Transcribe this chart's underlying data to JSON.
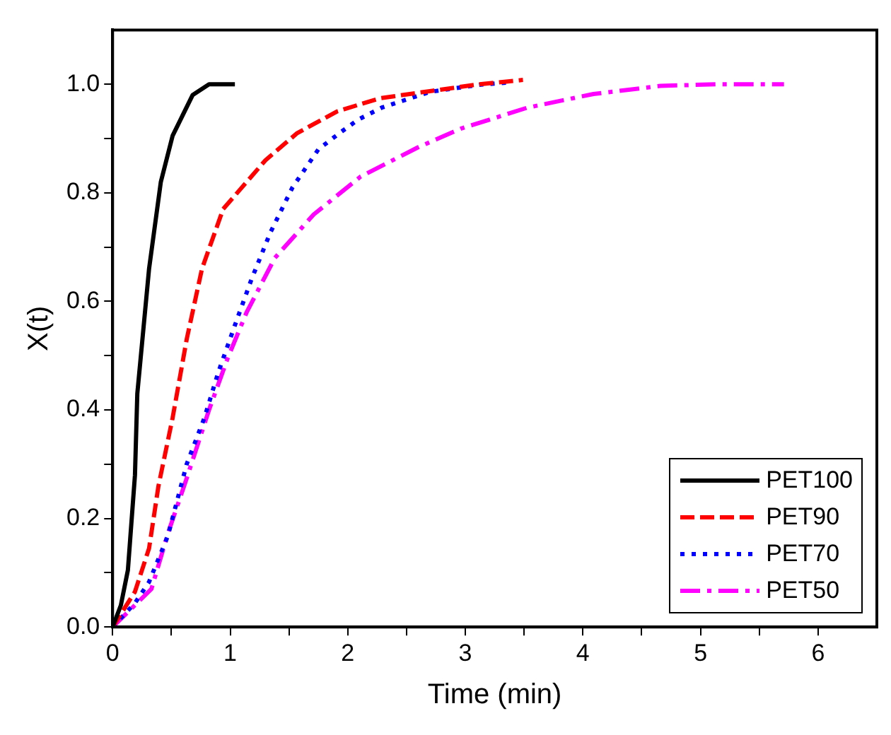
{
  "chart_data": {
    "type": "line",
    "xlabel": "Time (min)",
    "ylabel": "X(t)",
    "xlim": [
      0,
      6.5
    ],
    "ylim": [
      0,
      1.1
    ],
    "xticks": [
      0,
      {
        "value": 0.5,
        "label": null
      },
      1,
      {
        "value": 1.5,
        "label": null
      },
      2,
      {
        "value": 2.5,
        "label": null
      },
      3,
      {
        "value": 3.5,
        "label": null
      },
      4,
      {
        "value": 4.5,
        "label": null
      },
      5,
      {
        "value": 5.5,
        "label": null
      },
      6
    ],
    "yticks": [
      {
        "value": 0,
        "label": "0.0"
      },
      {
        "value": 0.1,
        "label": null
      },
      {
        "value": 0.2,
        "label": "0.2"
      },
      {
        "value": 0.3,
        "label": null
      },
      {
        "value": 0.4,
        "label": "0.4"
      },
      {
        "value": 0.5,
        "label": null
      },
      {
        "value": 0.6,
        "label": "0.6"
      },
      {
        "value": 0.7,
        "label": null
      },
      {
        "value": 0.8,
        "label": "0.8"
      },
      {
        "value": 0.9,
        "label": null
      },
      {
        "value": 1.0,
        "label": "1.0"
      }
    ],
    "grid": false,
    "legend": "bottom right",
    "marker": "none",
    "series": [
      {
        "name": "PET100",
        "color": "#000000",
        "line_style": "solid",
        "x": [
          0,
          0.07,
          0.13,
          0.19,
          0.21,
          0.31,
          0.41,
          0.51,
          0.68,
          0.82,
          1.04
        ],
        "values": [
          0,
          0.04,
          0.105,
          0.28,
          0.43,
          0.66,
          0.82,
          0.905,
          0.98,
          1.0,
          1.0
        ]
      },
      {
        "name": "PET90",
        "color": "#ff0000",
        "line_style": "dashed",
        "x": [
          0,
          0.19,
          0.31,
          0.39,
          0.51,
          0.63,
          0.76,
          0.94,
          1.1,
          1.3,
          1.57,
          1.91,
          2.27,
          2.72,
          3.12,
          3.49
        ],
        "values": [
          0,
          0.065,
          0.145,
          0.26,
          0.385,
          0.53,
          0.66,
          0.77,
          0.81,
          0.86,
          0.91,
          0.95,
          0.974,
          0.988,
          1.0,
          1.008
        ]
      },
      {
        "name": "PET70",
        "color": "#0000ff",
        "line_style": "dotted",
        "x": [
          0,
          0.19,
          0.31,
          0.47,
          0.63,
          0.78,
          0.9,
          1.04,
          1.18,
          1.34,
          1.53,
          1.75,
          1.93,
          2.09,
          2.29,
          2.7,
          3.12,
          3.35
        ],
        "values": [
          0,
          0.044,
          0.083,
          0.168,
          0.3,
          0.385,
          0.47,
          0.556,
          0.64,
          0.726,
          0.81,
          0.88,
          0.91,
          0.935,
          0.957,
          0.986,
          0.999,
          1.003
        ]
      },
      {
        "name": "PET50",
        "color": "#ff00ff",
        "line_style": "dashdot",
        "x": [
          0,
          0.33,
          0.47,
          0.63,
          0.82,
          0.98,
          1.14,
          1.38,
          1.71,
          2.11,
          2.6,
          2.96,
          3.53,
          4.09,
          4.66,
          5.15,
          5.71
        ],
        "values": [
          0,
          0.07,
          0.172,
          0.274,
          0.4,
          0.496,
          0.58,
          0.68,
          0.76,
          0.83,
          0.884,
          0.918,
          0.957,
          0.982,
          0.997,
          1.0,
          1.0
        ]
      }
    ]
  }
}
